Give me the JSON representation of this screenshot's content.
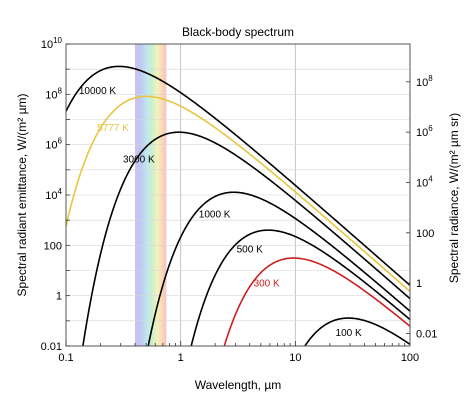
{
  "chart_data": {
    "type": "line",
    "title": "Black-body spectrum",
    "xlabel": "Wavelength, µm",
    "ylabel_left": "Spectral radiant emittance, W/(m² µm)",
    "ylabel_right": "Spectral radiance, W/(m² µm sr)",
    "xscale": "log",
    "yscale": "log",
    "xlim": [
      0.1,
      100
    ],
    "ylim": [
      0.01,
      10000000000
    ],
    "grid": true,
    "visible_band_um": [
      0.4,
      0.75
    ],
    "x_ticks": [
      {
        "value": 0.1,
        "label": "0.1"
      },
      {
        "value": 1,
        "label": "1"
      },
      {
        "value": 10,
        "label": "10"
      },
      {
        "value": 100,
        "label": "100"
      }
    ],
    "y_ticks_left": [
      {
        "value": 0.01,
        "label": "0.01"
      },
      {
        "value": 1,
        "label": "1"
      },
      {
        "value": 100,
        "label": "100"
      },
      {
        "value": 10000,
        "base": "10",
        "exp": "4"
      },
      {
        "value": 1000000,
        "base": "10",
        "exp": "6"
      },
      {
        "value": 100000000,
        "base": "10",
        "exp": "8"
      },
      {
        "value": 10000000000,
        "base": "10",
        "exp": "10"
      }
    ],
    "y_ticks_right": [
      {
        "value": 0.01,
        "label": "0.01"
      },
      {
        "value": 1,
        "label": "1"
      },
      {
        "value": 100,
        "label": "100"
      },
      {
        "value": 10000,
        "base": "10",
        "exp": "4"
      },
      {
        "value": 1000000,
        "base": "10",
        "exp": "6"
      },
      {
        "value": 100000000,
        "base": "10",
        "exp": "8"
      }
    ],
    "series": [
      {
        "name": "10000 K",
        "temperature": 10000,
        "color": "#000000"
      },
      {
        "name": "5777 K",
        "temperature": 5777,
        "color": "#e8c640"
      },
      {
        "name": "3000 K",
        "temperature": 3000,
        "color": "#000000"
      },
      {
        "name": "1000 K",
        "temperature": 1000,
        "color": "#000000"
      },
      {
        "name": "500 K",
        "temperature": 500,
        "color": "#000000"
      },
      {
        "name": "300 K",
        "temperature": 300,
        "color": "#cc1f1f"
      },
      {
        "name": "100 K",
        "temperature": 100,
        "color": "#000000"
      }
    ]
  }
}
